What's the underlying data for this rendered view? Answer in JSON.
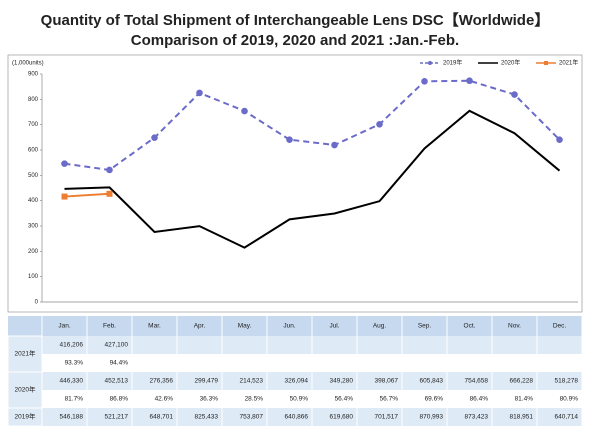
{
  "title": [
    "Quantity of Total Shipment of Interchangeable Lens DSC【Worldwide】",
    "Comparison of 2019, 2020 and 2021 :Jan.-Feb."
  ],
  "chart_data": {
    "type": "line",
    "y_label": "(1,000units)",
    "categories": [
      "Jan.",
      "Feb.",
      "Mar.",
      "Apr.",
      "May.",
      "Jun.",
      "Jul.",
      "Aug.",
      "Sep.",
      "Oct.",
      "Nov.",
      "Dec."
    ],
    "ylim": [
      0,
      900
    ],
    "yticks": [
      0,
      100,
      200,
      300,
      400,
      500,
      600,
      700,
      800,
      900
    ],
    "grid": false,
    "legend": "top-right",
    "series": [
      {
        "name": "2019年",
        "color": "#6b6bc9",
        "dashed": true,
        "marker": "circle",
        "values": [
          546.188,
          521.217,
          648.701,
          825.433,
          753.807,
          640.866,
          619.68,
          701.517,
          870.993,
          873.423,
          818.951,
          640.714
        ],
        "value_labels": [
          "546,188",
          "521,217",
          "648,701",
          "825,433",
          "753,807",
          "640,866",
          "619,680",
          "701,517",
          "870,993",
          "873,423",
          "818,951",
          "640,714"
        ]
      },
      {
        "name": "2020年",
        "color": "#000000",
        "dashed": false,
        "marker": "none",
        "values": [
          446.33,
          452.513,
          276.356,
          299.479,
          214.523,
          326.094,
          349.28,
          398.067,
          605.843,
          754.658,
          666.228,
          518.278
        ],
        "value_labels": [
          "446,330",
          "452,513",
          "276,356",
          "299,479",
          "214,523",
          "326,094",
          "349,280",
          "398,067",
          "605,843",
          "754,658",
          "666,228",
          "518,278"
        ],
        "ratios": [
          "81.7%",
          "86.8%",
          "42.6%",
          "36.3%",
          "28.5%",
          "50.9%",
          "56.4%",
          "56.7%",
          "69.6%",
          "86.4%",
          "81.4%",
          "80.9%"
        ]
      },
      {
        "name": "2021年",
        "color": "#ed7d31",
        "dashed": false,
        "marker": "square",
        "values": [
          416.206,
          427.1,
          null,
          null,
          null,
          null,
          null,
          null,
          null,
          null,
          null,
          null
        ],
        "value_labels": [
          "416,206",
          "427,100",
          null,
          null,
          null,
          null,
          null,
          null,
          null,
          null,
          null,
          null
        ],
        "ratios": [
          "93.3%",
          "94.4%",
          null,
          null,
          null,
          null,
          null,
          null,
          null,
          null,
          null,
          null
        ]
      }
    ]
  }
}
